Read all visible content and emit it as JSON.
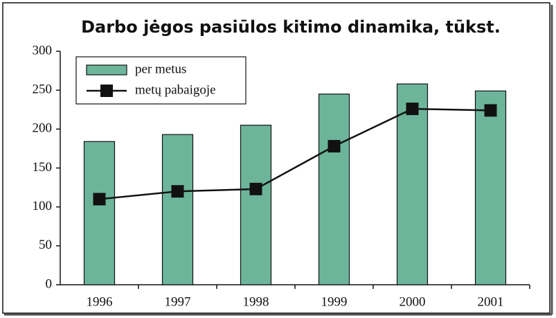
{
  "chart_data": {
    "type": "bar",
    "title": "Darbo jėgos pasiūlos kitimo dinamika, tūkst.",
    "categories": [
      "1996",
      "1997",
      "1998",
      "1999",
      "2000",
      "2001"
    ],
    "series": [
      {
        "name": "per metus",
        "type": "bar",
        "color": "#6db59a",
        "values": [
          184,
          193,
          205,
          245,
          258,
          249
        ]
      },
      {
        "name": "metų pabaigoje",
        "type": "line",
        "color": "#111111",
        "values": [
          110,
          120,
          123,
          178,
          226,
          224
        ]
      }
    ],
    "ylim": [
      0,
      300
    ],
    "yticks": [
      0,
      50,
      100,
      150,
      200,
      250,
      300
    ],
    "grid": false,
    "legend": "top-left"
  }
}
